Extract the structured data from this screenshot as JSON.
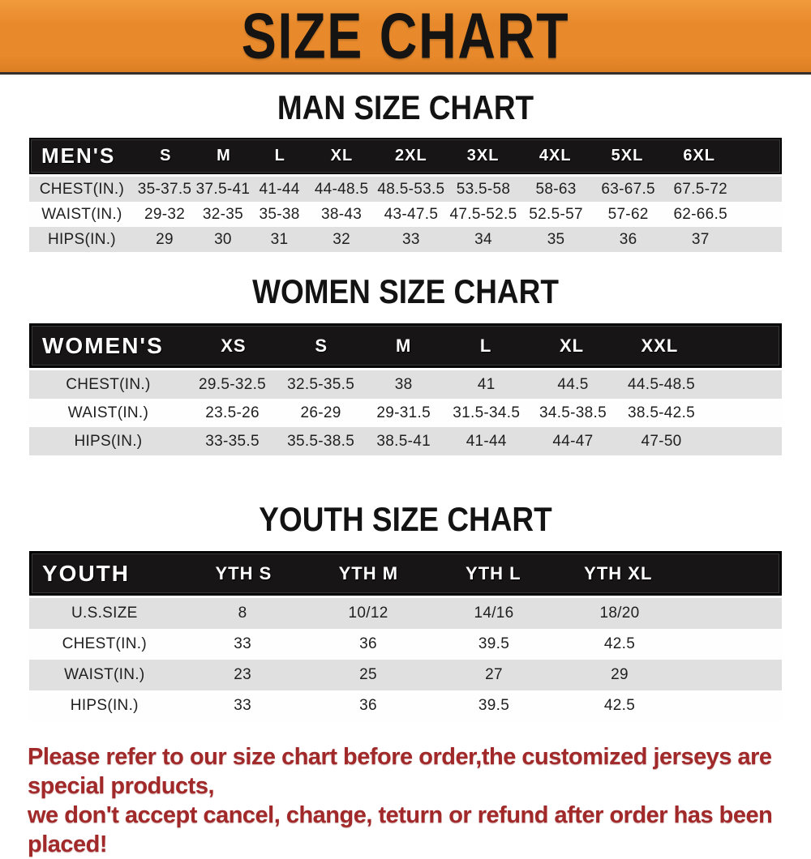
{
  "banner": {
    "title": "SIZE CHART",
    "bg_color": "#e8892b",
    "text_color": "#161412"
  },
  "chart_data": [
    {
      "type": "table",
      "title": "MAN SIZE CHART",
      "header": [
        "MEN'S",
        "S",
        "M",
        "L",
        "XL",
        "2XL",
        "3XL",
        "4XL",
        "5XL",
        "6XL"
      ],
      "rows": [
        [
          "CHEST(IN.)",
          "35-37.5",
          "37.5-41",
          "41-44",
          "44-48.5",
          "48.5-53.5",
          "53.5-58",
          "58-63",
          "63-67.5",
          "67.5-72"
        ],
        [
          "WAIST(IN.)",
          "29-32",
          "32-35",
          "35-38",
          "38-43",
          "43-47.5",
          "47.5-52.5",
          "52.5-57",
          "57-62",
          "62-66.5"
        ],
        [
          "HIPS(IN.)",
          "29",
          "30",
          "31",
          "32",
          "33",
          "34",
          "35",
          "36",
          "37"
        ]
      ]
    },
    {
      "type": "table",
      "title": "WOMEN SIZE CHART",
      "header": [
        "WOMEN'S",
        "XS",
        "S",
        "M",
        "L",
        "XL",
        "XXL"
      ],
      "rows": [
        [
          "CHEST(IN.)",
          "29.5-32.5",
          "32.5-35.5",
          "38",
          "41",
          "44.5",
          "44.5-48.5"
        ],
        [
          "WAIST(IN.)",
          "23.5-26",
          "26-29",
          "29-31.5",
          "31.5-34.5",
          "34.5-38.5",
          "38.5-42.5"
        ],
        [
          "HIPS(IN.)",
          "33-35.5",
          "35.5-38.5",
          "38.5-41",
          "41-44",
          "44-47",
          "47-50"
        ]
      ]
    },
    {
      "type": "table",
      "title": "YOUTH SIZE CHART",
      "header": [
        "YOUTH",
        "YTH S",
        "YTH M",
        "YTH L",
        "YTH XL"
      ],
      "rows": [
        [
          "U.S.SIZE",
          "8",
          "10/12",
          "14/16",
          "18/20"
        ],
        [
          "CHEST(IN.)",
          "33",
          "36",
          "39.5",
          "42.5"
        ],
        [
          "WAIST(IN.)",
          "23",
          "25",
          "27",
          "29"
        ],
        [
          "HIPS(IN.)",
          "33",
          "36",
          "39.5",
          "42.5"
        ]
      ]
    }
  ],
  "row_colors": {
    "striped": "#e0e0e0",
    "plain": "#fefefe",
    "header_bar": "#171515"
  },
  "footer": {
    "line1": "Please refer to our size chart before order,the customized jerseys are special products,",
    "line2": "we don't accept cancel, change, teturn or refund after order has been placed!",
    "text_color": "#a1292a"
  }
}
